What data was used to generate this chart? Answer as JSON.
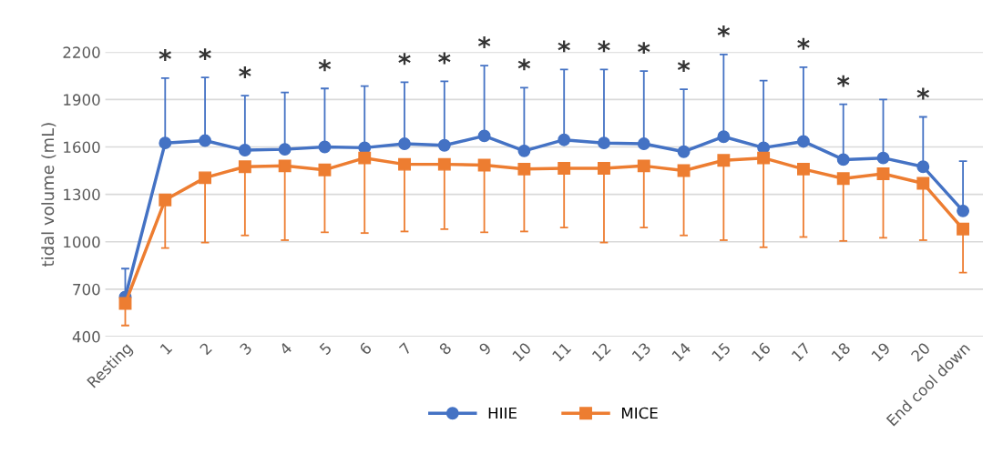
{
  "chart_data": {
    "type": "line",
    "ylabel": "tidal volume (mL)",
    "categories": [
      "Resting",
      "1",
      "2",
      "3",
      "4",
      "5",
      "6",
      "7",
      "8",
      "9",
      "10",
      "11",
      "12",
      "13",
      "14",
      "15",
      "16",
      "17",
      "18",
      "19",
      "20",
      "End cool down"
    ],
    "series": [
      {
        "name": "HIIE",
        "color": "#4472c4",
        "marker": "circle",
        "values": [
          650,
          1625,
          1640,
          1580,
          1585,
          1600,
          1595,
          1620,
          1610,
          1670,
          1575,
          1645,
          1625,
          1620,
          1570,
          1665,
          1595,
          1635,
          1520,
          1530,
          1475,
          1195
        ],
        "errors": [
          [
            650,
            830
          ],
          [
            1625,
            2035
          ],
          [
            1640,
            2040
          ],
          [
            1580,
            1925
          ],
          [
            1585,
            1945
          ],
          [
            1600,
            1970
          ],
          [
            1595,
            1985
          ],
          [
            1620,
            2010
          ],
          [
            1610,
            2015
          ],
          [
            1670,
            2115
          ],
          [
            1575,
            1975
          ],
          [
            1645,
            2090
          ],
          [
            1625,
            2090
          ],
          [
            1620,
            2080
          ],
          [
            1570,
            1965
          ],
          [
            1665,
            2185
          ],
          [
            1595,
            2020
          ],
          [
            1635,
            2105
          ],
          [
            1520,
            1870
          ],
          [
            1530,
            1900
          ],
          [
            1475,
            1790
          ],
          [
            1195,
            1510
          ]
        ]
      },
      {
        "name": "MICE",
        "color": "#ed7d31",
        "marker": "square",
        "values": [
          610,
          1265,
          1405,
          1475,
          1480,
          1455,
          1530,
          1490,
          1490,
          1485,
          1460,
          1465,
          1465,
          1480,
          1450,
          1515,
          1530,
          1460,
          1400,
          1430,
          1370,
          1080
        ],
        "errors": [
          [
            470,
            610
          ],
          [
            960,
            1265
          ],
          [
            995,
            1405
          ],
          [
            1040,
            1475
          ],
          [
            1010,
            1480
          ],
          [
            1060,
            1455
          ],
          [
            1055,
            1530
          ],
          [
            1065,
            1490
          ],
          [
            1080,
            1490
          ],
          [
            1060,
            1485
          ],
          [
            1065,
            1460
          ],
          [
            1090,
            1465
          ],
          [
            995,
            1465
          ],
          [
            1090,
            1480
          ],
          [
            1040,
            1450
          ],
          [
            1010,
            1515
          ],
          [
            965,
            1530
          ],
          [
            1030,
            1460
          ],
          [
            1005,
            1400
          ],
          [
            1025,
            1430
          ],
          [
            1010,
            1370
          ],
          [
            805,
            1080
          ]
        ]
      }
    ],
    "ylim": [
      400,
      2200
    ],
    "yticks": [
      400,
      700,
      1000,
      1300,
      1600,
      1900,
      2200
    ],
    "grid": "y",
    "legend": "bottom",
    "annotations": [
      {
        "text": "*",
        "x": "1",
        "y": 2035
      },
      {
        "text": "*",
        "x": "2",
        "y": 2040
      },
      {
        "text": "*",
        "x": "3",
        "y": 1925
      },
      {
        "text": "*",
        "x": "5",
        "y": 1970
      },
      {
        "text": "*",
        "x": "7",
        "y": 2010
      },
      {
        "text": "*",
        "x": "8",
        "y": 2015
      },
      {
        "text": "*",
        "x": "9",
        "y": 2115
      },
      {
        "text": "*",
        "x": "10",
        "y": 1975
      },
      {
        "text": "*",
        "x": "11",
        "y": 2090
      },
      {
        "text": "*",
        "x": "12",
        "y": 2090
      },
      {
        "text": "*",
        "x": "13",
        "y": 2080
      },
      {
        "text": "*",
        "x": "14",
        "y": 1965
      },
      {
        "text": "*",
        "x": "15",
        "y": 2185
      },
      {
        "text": "*",
        "x": "17",
        "y": 2105
      },
      {
        "text": "*",
        "x": "18",
        "y": 1870
      },
      {
        "text": "*",
        "x": "20",
        "y": 1790
      }
    ]
  }
}
